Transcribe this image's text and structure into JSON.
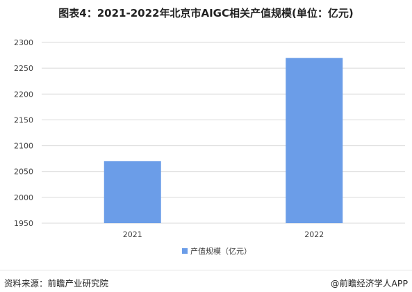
{
  "title": "图表4：2021-2022年北京市AIGC相关产值规模(单位：亿元)",
  "chart_data": {
    "type": "bar",
    "categories": [
      "2021",
      "2022"
    ],
    "series": [
      {
        "name": "产值规模（亿元）",
        "values": [
          2070,
          2270
        ]
      }
    ],
    "ylim": [
      1950,
      2300
    ],
    "yticks": [
      1950,
      2000,
      2050,
      2100,
      2150,
      2200,
      2250,
      2300
    ],
    "grid": true,
    "legend": "bottom",
    "bar_color": "#6b9de8",
    "grid_color": "#d9d9d9"
  },
  "footer": {
    "source": "资料来源：前瞻产业研究院",
    "brand": "@前瞻经济学人APP"
  }
}
